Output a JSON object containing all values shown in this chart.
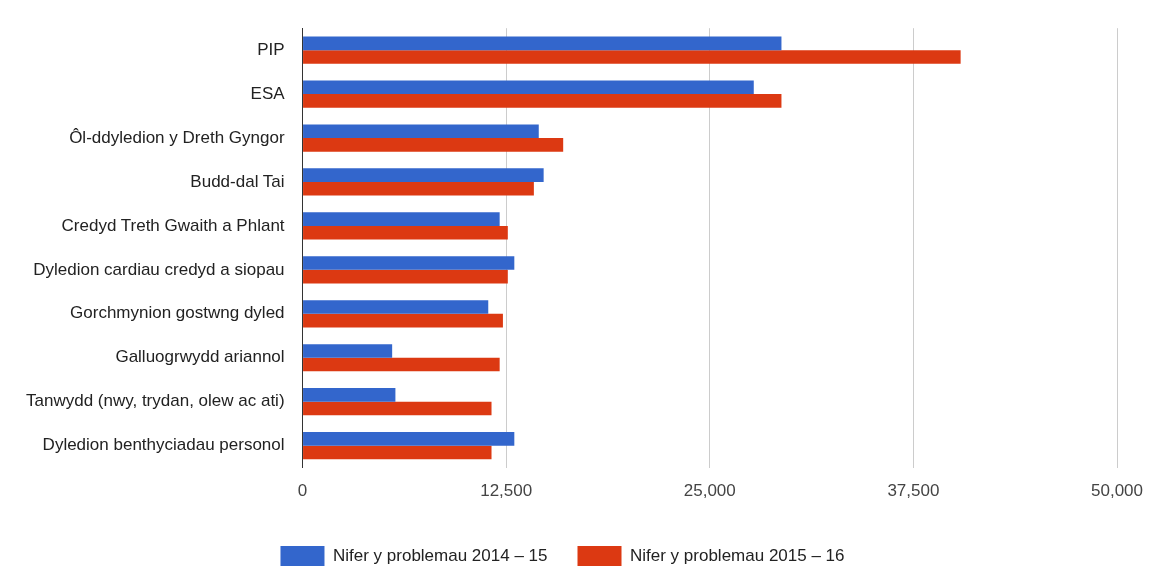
{
  "chart_data": {
    "type": "bar",
    "orientation": "horizontal",
    "categories": [
      "PIP",
      "ESA",
      "Ôl-ddyledion y Dreth Gyngor",
      "Budd-dal Tai",
      "Credyd Treth Gwaith a Phlant",
      "Dyledion cardiau credyd a siopau",
      "Gorchmynion gostwng dyled",
      "Galluogrwydd ariannol",
      "Tanwydd (nwy, trydan, olew ac ati)",
      "Dyledion benthyciadau personol"
    ],
    "series": [
      {
        "name": "Nifer y problemau 2014 – 15",
        "color": "#3366cc",
        "values": [
          29400,
          27700,
          14500,
          14800,
          12100,
          13000,
          11400,
          5500,
          5700,
          13000
        ]
      },
      {
        "name": "Nifer y problemau 2015 – 16",
        "color": "#dc3912",
        "values": [
          40400,
          29400,
          16000,
          14200,
          12600,
          12600,
          12300,
          12100,
          11600,
          11600
        ]
      }
    ],
    "xlim": [
      0,
      50000
    ],
    "xticks": [
      0,
      {
        "value": 12500,
        "label": "12,500"
      },
      {
        "value": 25000,
        "label": "25,000"
      },
      {
        "value": 37500,
        "label": "37,500"
      },
      {
        "value": 50000,
        "label": "50,000"
      }
    ],
    "grid": "x",
    "legend": "bottom"
  }
}
